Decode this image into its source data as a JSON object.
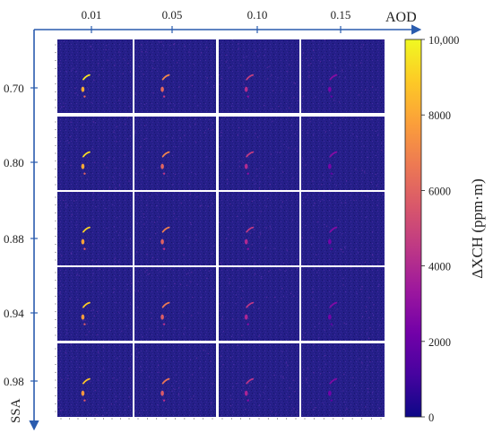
{
  "figure": {
    "x_axis": {
      "name": "AOD",
      "tick_labels": [
        "0.01",
        "0.05",
        "0.10",
        "0.15"
      ]
    },
    "y_axis": {
      "name": "SSA",
      "tick_labels": [
        "0.70",
        "0.80",
        "0.88",
        "0.94",
        "0.98"
      ]
    },
    "colorbar": {
      "label": "ΔXCH (ppm·m)",
      "tick_labels": [
        "10,000",
        "8000",
        "6000",
        "4000",
        "2000",
        "0"
      ],
      "min": 0,
      "max": 10000,
      "colormap": "plasma",
      "colors": [
        "#0d0887",
        "#46039f",
        "#7201a8",
        "#9c179e",
        "#bd3786",
        "#d8576b",
        "#ed7953",
        "#fb9f3a",
        "#fdca26",
        "#f0f921"
      ]
    },
    "panel_background": "#221c80",
    "plume_signal_levels": [
      1.0,
      0.75,
      0.5,
      0.3
    ]
  }
}
